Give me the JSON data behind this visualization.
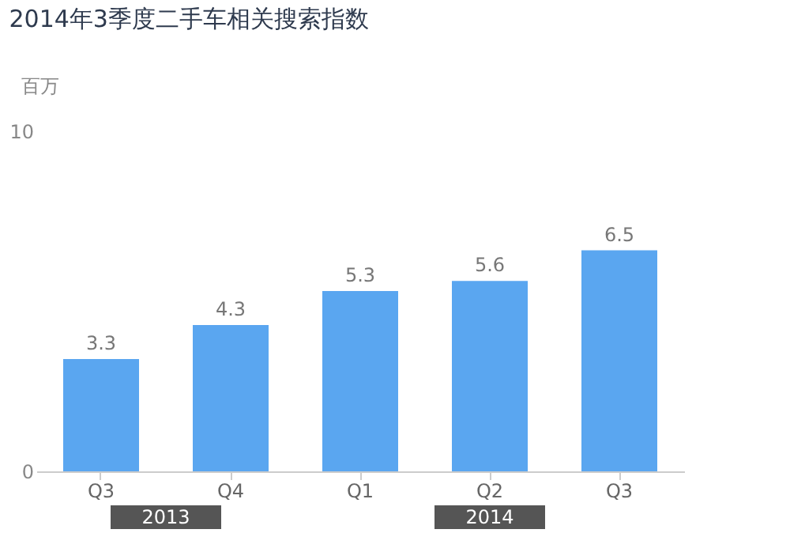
{
  "chart_data": {
    "type": "bar",
    "title": "2014年3季度二手车相关搜索指数",
    "ylabel": "百万",
    "categories": [
      "Q3",
      "Q4",
      "Q1",
      "Q2",
      "Q3"
    ],
    "values": [
      3.3,
      4.3,
      5.3,
      5.6,
      6.5
    ],
    "color": "#5aa6f0",
    "ylim": [
      0,
      10
    ],
    "yticks": [
      0,
      10
    ],
    "grid": false,
    "data_labels": true,
    "annotations": [
      "2013",
      "2014"
    ]
  }
}
